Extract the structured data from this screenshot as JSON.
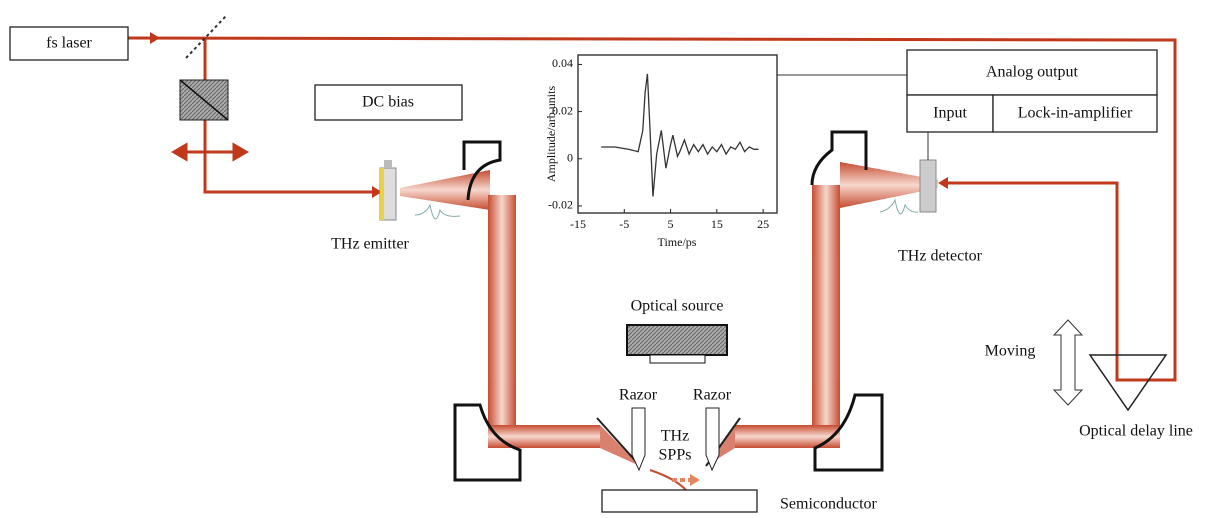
{
  "labels": {
    "fs_laser": "fs laser",
    "dc_bias": "DC bias",
    "thz_emitter": "THz emitter",
    "thz_detector": "THz detector",
    "analog_output": "Analog output",
    "input": "Input",
    "lock_in_amplifier": "Lock-in-amplifier",
    "optical_source": "Optical source",
    "razor_left": "Razor",
    "razor_right": "Razor",
    "thz_spps": [
      "THz",
      "SPPs"
    ],
    "semiconductor": "Semiconductor",
    "moving": "Moving",
    "optical_delay_line": "Optical delay line"
  },
  "inset_chart": {
    "type": "line",
    "xlabel": "Time/ps",
    "ylabel": "Amplitude/arb.units",
    "x": [
      -10,
      -7,
      -4,
      -2,
      -1,
      -0.5,
      0,
      0.5,
      1.2,
      2,
      3,
      4,
      5,
      5.5,
      6.5,
      7,
      8,
      9,
      10,
      11,
      12,
      13,
      14,
      15,
      16,
      17,
      18,
      19,
      20,
      21,
      22,
      23,
      24
    ],
    "values": [
      0.005,
      0.005,
      0.004,
      0.003,
      0.012,
      0.028,
      0.036,
      0.015,
      -0.016,
      0.002,
      0.012,
      -0.004,
      0.006,
      0.01,
      0.001,
      0.003,
      0.008,
      0.002,
      0.006,
      0.003,
      0.006,
      0.002,
      0.005,
      0.003,
      0.006,
      0.002,
      0.005,
      0.004,
      0.007,
      0.003,
      0.005,
      0.004,
      0.004
    ],
    "color": "#333333",
    "xlim": [
      -15,
      28
    ],
    "ylim": [
      -0.023,
      0.044
    ],
    "xticks": [
      -15,
      -5,
      5,
      15,
      25
    ],
    "yticks": [
      -0.02,
      0,
      0.02,
      0.04
    ]
  }
}
